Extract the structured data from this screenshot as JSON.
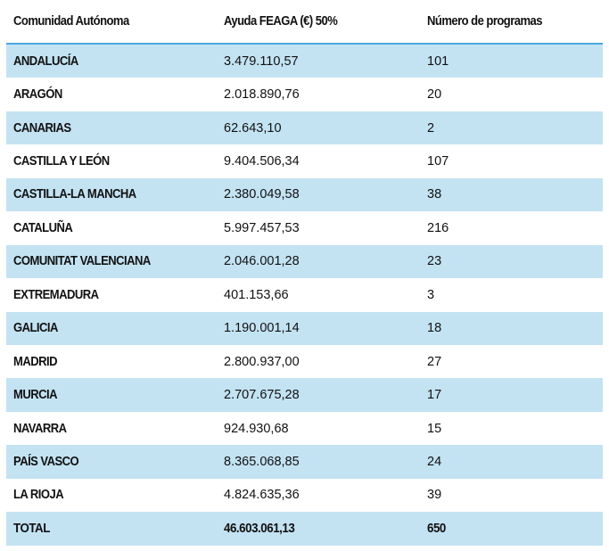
{
  "headers": [
    "Comunidad Autónoma",
    "Ayuda FEAGA (€) 50%",
    "Número de programas"
  ],
  "rows": [
    {
      "region": "ANDALUCÍA",
      "ayuda": "3.479.110,57",
      "programas": "101"
    },
    {
      "region": "ARAGÓN",
      "ayuda": "2.018.890,76",
      "programas": "20"
    },
    {
      "region": "CANARIAS",
      "ayuda": "62.643,10",
      "programas": "2"
    },
    {
      "region": "CASTILLA Y LEÓN",
      "ayuda": "9.404.506,34",
      "programas": "107"
    },
    {
      "region": "CASTILLA-LA MANCHA",
      "ayuda": "2.380.049,58",
      "programas": "38"
    },
    {
      "region": "CATALUÑA",
      "ayuda": "5.997.457,53",
      "programas": "216"
    },
    {
      "region": "COMUNITAT VALENCIANA",
      "ayuda": "2.046.001,28",
      "programas": "23"
    },
    {
      "region": "EXTREMADURA",
      "ayuda": "401.153,66",
      "programas": "3"
    },
    {
      "region": "GALICIA",
      "ayuda": "1.190.001,14",
      "programas": "18"
    },
    {
      "region": "MADRID",
      "ayuda": "2.800.937,00",
      "programas": "27"
    },
    {
      "region": "MURCIA",
      "ayuda": "2.707.675,28",
      "programas": "17"
    },
    {
      "region": "NAVARRA",
      "ayuda": "924.930,68",
      "programas": "15"
    },
    {
      "region": "PAÍS VASCO",
      "ayuda": "8.365.068,85",
      "programas": "24"
    },
    {
      "region": "LA RIOJA",
      "ayuda": "4.824.635,36",
      "programas": "39"
    }
  ],
  "total": {
    "region": "TOTAL",
    "ayuda": "46.603.061,13",
    "programas": "650"
  },
  "colors": {
    "shade": "#c3e3f3",
    "header_line": "#4aa8e0"
  }
}
